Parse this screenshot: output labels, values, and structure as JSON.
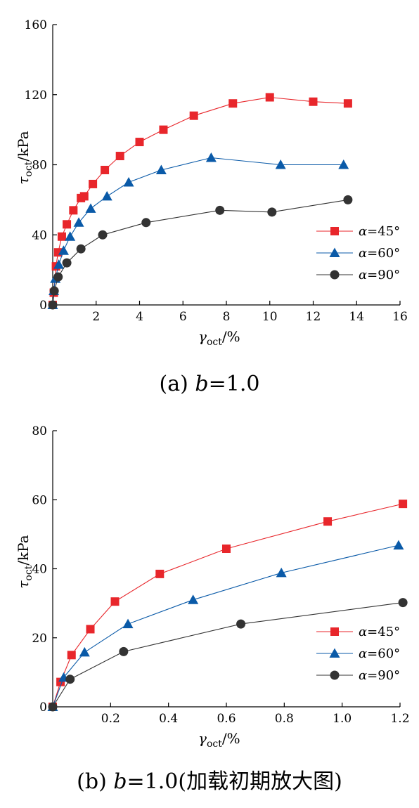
{
  "colors": {
    "s45": "#e8262b",
    "s60": "#0a5aa8",
    "s90": "#333333"
  },
  "chart_data": [
    {
      "type": "line",
      "caption": "(a) b=1.0",
      "caption_pre": "(a) ",
      "caption_var": "b",
      "caption_post": "=1.0",
      "xlabel_sym": "γ",
      "xlabel_sub": "oct",
      "xlabel_unit": "/%",
      "ylabel_sym": "τ",
      "ylabel_sub": "oct",
      "ylabel_unit": "/kPa",
      "xlim": [
        0,
        16
      ],
      "ylim": [
        0,
        160
      ],
      "xticks": [
        2,
        4,
        6,
        8,
        10,
        12,
        14,
        16
      ],
      "xticklabels": [
        "2",
        "4",
        "6",
        "8",
        "10",
        "12",
        "14",
        "16"
      ],
      "yticks": [
        0,
        40,
        80,
        120,
        160
      ],
      "yticklabels": [
        "0",
        "40",
        "80",
        "120",
        "160"
      ],
      "legend_position": "right",
      "series": [
        {
          "name_var": "α",
          "name_rest": "=45°",
          "marker": "square",
          "color_key": "s45",
          "x": [
            0,
            0.05,
            0.15,
            0.25,
            0.42,
            0.65,
            0.95,
            1.3,
            1.45,
            1.85,
            2.4,
            3.1,
            4.0,
            5.1,
            6.5,
            8.3,
            10.0,
            12.0,
            13.6
          ],
          "y": [
            0,
            7,
            22,
            30,
            39,
            46,
            54,
            61,
            62,
            69,
            77,
            85,
            93,
            100,
            108,
            115,
            118.5,
            116,
            115
          ]
        },
        {
          "name_var": "α",
          "name_rest": "=60°",
          "marker": "triangle",
          "color_key": "s60",
          "x": [
            0,
            0.05,
            0.12,
            0.28,
            0.5,
            0.8,
            1.2,
            1.75,
            2.5,
            3.5,
            5.0,
            7.3,
            10.5,
            13.4
          ],
          "y": [
            0,
            8,
            15,
            23,
            31,
            39,
            47,
            55,
            62,
            70,
            77,
            84,
            80,
            80
          ]
        },
        {
          "name_var": "α",
          "name_rest": "=90°",
          "marker": "circle",
          "color_key": "s90",
          "x": [
            0,
            0.07,
            0.25,
            0.65,
            1.3,
            2.3,
            4.3,
            7.7,
            10.1,
            13.6
          ],
          "y": [
            0,
            8,
            16,
            24,
            32,
            40,
            47,
            54,
            53,
            60
          ]
        }
      ]
    },
    {
      "type": "line",
      "caption": "(b) b=1.0(加载初期放大图)",
      "caption_pre": "(b) ",
      "caption_var": "b",
      "caption_post": "=1.0(加载初期放大图)",
      "xlabel_sym": "γ",
      "xlabel_sub": "oct",
      "xlabel_unit": "/%",
      "ylabel_sym": "τ",
      "ylabel_sub": "oct",
      "ylabel_unit": "/kPa",
      "xlim": [
        0,
        1.2
      ],
      "ylim": [
        0,
        80
      ],
      "xticks": [
        0.2,
        0.4,
        0.6,
        0.8,
        1.0,
        1.2
      ],
      "xticklabels": [
        "0.2",
        "0.4",
        "0.6",
        "0.8",
        "1.0",
        "1.2"
      ],
      "yticks": [
        0,
        20,
        40,
        60,
        80
      ],
      "yticklabels": [
        "0",
        "20",
        "40",
        "60",
        "80"
      ],
      "legend_position": "right",
      "series": [
        {
          "name_var": "α",
          "name_rest": "=45°",
          "marker": "square",
          "color_key": "s45",
          "x": [
            0,
            0.027,
            0.065,
            0.13,
            0.215,
            0.37,
            0.6,
            0.95,
            1.21
          ],
          "y": [
            0,
            7.2,
            15,
            22.5,
            30.5,
            38.5,
            45.8,
            53.7,
            58.8
          ]
        },
        {
          "name_var": "α",
          "name_rest": "=60°",
          "marker": "triangle",
          "color_key": "s60",
          "x": [
            0,
            0.038,
            0.11,
            0.26,
            0.485,
            0.79,
            1.195
          ],
          "y": [
            0,
            8.5,
            15.8,
            24,
            31,
            38.8,
            46.8
          ]
        },
        {
          "name_var": "α",
          "name_rest": "=90°",
          "marker": "circle",
          "color_key": "s90",
          "x": [
            0,
            0.06,
            0.245,
            0.65,
            1.21
          ],
          "y": [
            0,
            8,
            16,
            24,
            30.2
          ]
        }
      ]
    }
  ]
}
